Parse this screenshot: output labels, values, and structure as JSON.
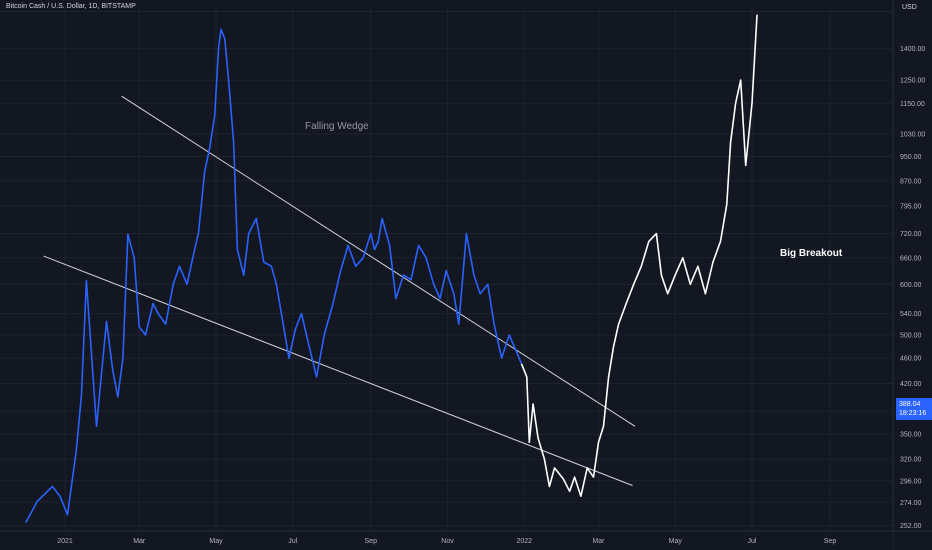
{
  "header": {
    "symbol_label": "Bitcoin Cash / U.S. Dollar, 1D, BITSTAMP"
  },
  "currency": {
    "label": "USD"
  },
  "price_tag": {
    "price": "388.04",
    "countdown": "18:23:16"
  },
  "annotations": {
    "wedge": "Falling Wedge",
    "breakout": "Big Breakout"
  },
  "colors": {
    "background": "#131722",
    "history": "#2962ff",
    "projection": "#ffffff",
    "trendline": "#d1d4dc",
    "axis_text": "#b2b5be"
  },
  "chart_data": {
    "type": "line",
    "title": "",
    "x_ticks": [
      "2021",
      "Mar",
      "May",
      "Jul",
      "Sep",
      "Nov",
      "2022",
      "Mar",
      "May",
      "Jul",
      "Sep"
    ],
    "x_tick_dates": [
      "2021-01-01",
      "2021-03-01",
      "2021-05-01",
      "2021-07-01",
      "2021-09-01",
      "2021-11-01",
      "2022-01-01",
      "2022-03-01",
      "2022-05-01",
      "2022-07-01",
      "2022-09-01"
    ],
    "y_ticks": [
      252,
      274,
      296,
      320,
      350,
      380,
      420,
      460,
      500,
      540,
      600,
      660,
      720,
      795,
      870,
      950,
      1030,
      1150,
      1250,
      1400,
      1600
    ],
    "y_tick_labels": [
      "252.00",
      "274.00",
      "296.00",
      "320.00",
      "350.00",
      "380.00",
      "420.00",
      "460.00",
      "500.00",
      "540.00",
      "600.00",
      "660.00",
      "720.00",
      "795.00",
      "870.00",
      "950.00",
      "1030.00",
      "1150.00",
      "1250.00",
      "1400.00",
      "1600"
    ],
    "y_scale": "log",
    "ylim": [
      248,
      1620
    ],
    "grid": true,
    "series": [
      {
        "x": [
          "2020-12-01",
          "2020-12-10",
          "2020-12-22",
          "2020-12-28",
          "2021-01-03",
          "2021-01-10",
          "2021-01-14",
          "2021-01-18",
          "2021-01-26",
          "2021-02-03",
          "2021-02-08",
          "2021-02-12",
          "2021-02-16",
          "2021-02-20",
          "2021-02-25",
          "2021-03-01",
          "2021-03-06",
          "2021-03-12",
          "2021-03-16",
          "2021-03-22",
          "2021-03-28",
          "2021-04-02",
          "2021-04-08",
          "2021-04-14",
          "2021-04-17",
          "2021-04-22",
          "2021-04-26",
          "2021-04-30",
          "2021-05-03",
          "2021-05-05",
          "2021-05-08",
          "2021-05-11",
          "2021-05-15",
          "2021-05-18",
          "2021-05-23",
          "2021-05-27",
          "2021-06-02",
          "2021-06-08",
          "2021-06-14",
          "2021-06-18",
          "2021-06-22",
          "2021-06-28",
          "2021-07-03",
          "2021-07-08",
          "2021-07-14",
          "2021-07-20",
          "2021-07-26",
          "2021-08-02",
          "2021-08-08",
          "2021-08-14",
          "2021-08-20",
          "2021-08-26",
          "2021-09-01",
          "2021-09-04",
          "2021-09-07",
          "2021-09-10",
          "2021-09-16",
          "2021-09-21",
          "2021-09-27",
          "2021-10-03",
          "2021-10-09",
          "2021-10-15",
          "2021-10-21",
          "2021-10-26",
          "2021-10-31",
          "2021-11-06",
          "2021-11-10",
          "2021-11-16",
          "2021-11-22",
          "2021-11-27",
          "2021-12-03",
          "2021-12-08",
          "2021-12-14",
          "2021-12-20",
          "2021-12-26",
          "2021-12-30"
        ],
        "values": [
          255,
          275,
          290,
          280,
          262,
          330,
          402,
          608,
          360,
          525,
          440,
          400,
          460,
          718,
          660,
          515,
          500,
          560,
          540,
          520,
          600,
          640,
          600,
          680,
          720,
          900,
          980,
          1100,
          1400,
          1500,
          1450,
          1250,
          1000,
          680,
          620,
          720,
          760,
          650,
          640,
          600,
          540,
          460,
          510,
          540,
          480,
          430,
          500,
          560,
          630,
          690,
          640,
          660,
          720,
          680,
          700,
          760,
          690,
          570,
          620,
          610,
          690,
          660,
          600,
          570,
          630,
          580,
          520,
          720,
          620,
          580,
          600,
          520,
          460,
          500,
          470,
          450
        ],
        "color": "#2962ff"
      },
      {
        "x": [
          "2021-12-30",
          "2022-01-03",
          "2022-01-05",
          "2022-01-08",
          "2022-01-12",
          "2022-01-17",
          "2022-01-21",
          "2022-01-25",
          "2022-02-01",
          "2022-02-06",
          "2022-02-10",
          "2022-02-15",
          "2022-02-20",
          "2022-02-25",
          "2022-03-01",
          "2022-03-05",
          "2022-03-09",
          "2022-03-13",
          "2022-03-17",
          "2022-03-23",
          "2022-03-29",
          "2022-04-04",
          "2022-04-10",
          "2022-04-16",
          "2022-04-20",
          "2022-04-25",
          "2022-05-01",
          "2022-05-07",
          "2022-05-13",
          "2022-05-19",
          "2022-05-25",
          "2022-05-31",
          "2022-06-06",
          "2022-06-11",
          "2022-06-14",
          "2022-06-18",
          "2022-06-22",
          "2022-06-26",
          "2022-07-01",
          "2022-07-05"
        ],
        "values": [
          450,
          430,
          340,
          390,
          345,
          320,
          290,
          310,
          298,
          285,
          300,
          280,
          310,
          300,
          340,
          360,
          430,
          480,
          520,
          560,
          600,
          640,
          700,
          720,
          620,
          580,
          620,
          660,
          600,
          640,
          580,
          650,
          700,
          800,
          1000,
          1150,
          1250,
          920,
          1150,
          1580
        ],
        "color": "#ffffff"
      }
    ],
    "trendlines": [
      {
        "x": [
          "2021-02-15",
          "2022-03-30"
        ],
        "values": [
          1180,
          360
        ]
      },
      {
        "x": [
          "2020-12-15",
          "2022-03-28"
        ],
        "values": [
          664,
          291
        ]
      }
    ]
  }
}
